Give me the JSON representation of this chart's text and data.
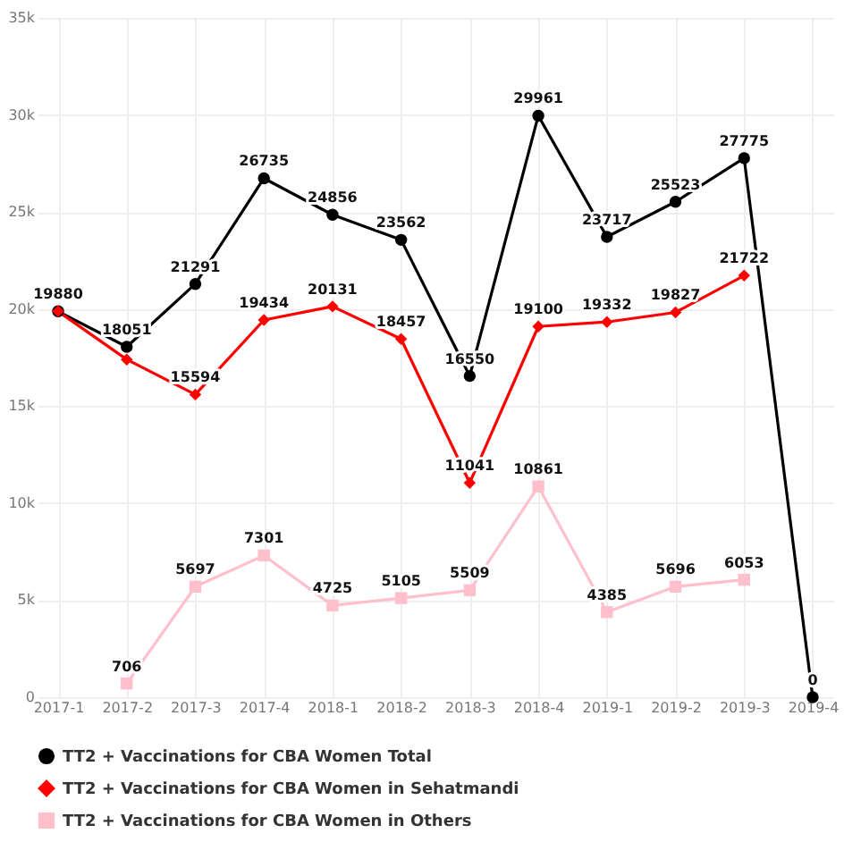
{
  "chart_data": {
    "type": "line",
    "categories": [
      "2017-1",
      "2017-2",
      "2017-3",
      "2017-4",
      "2018-1",
      "2018-2",
      "2018-3",
      "2018-4",
      "2019-1",
      "2019-2",
      "2019-3",
      "2019-4"
    ],
    "series": [
      {
        "name": "TT2 + Vaccinations for CBA Women Total",
        "color": "#000000",
        "marker": "circle",
        "values": [
          19880,
          18051,
          21291,
          26735,
          24856,
          23562,
          16550,
          29961,
          23717,
          25523,
          27775,
          0
        ],
        "value_labels": [
          "19880",
          "18051",
          "21291",
          "26735",
          "24856",
          "23562",
          "16550",
          "29961",
          "23717",
          "25523",
          "27775",
          "0"
        ]
      },
      {
        "name": "TT2 + Vaccinations for CBA Women in Sehatmandi",
        "color": "#ff0000",
        "marker": "diamond",
        "values": [
          19880,
          17400,
          15594,
          19434,
          20131,
          18457,
          11041,
          19100,
          19332,
          19827,
          21722,
          null
        ],
        "value_labels": [
          null,
          null,
          "15594",
          "19434",
          "20131",
          "18457",
          "11041",
          "19100",
          "19332",
          "19827",
          "21722",
          null
        ]
      },
      {
        "name": "TT2 + Vaccinations for CBA Women in Others",
        "color": "#ffc0cb",
        "marker": "square",
        "values": [
          null,
          706,
          5697,
          7301,
          4725,
          5105,
          5509,
          10861,
          4385,
          5696,
          6053,
          null
        ],
        "value_labels": [
          null,
          "706",
          "5697",
          "7301",
          "4725",
          "5105",
          "5509",
          "10861",
          "4385",
          "5696",
          "6053",
          null
        ]
      }
    ],
    "ylim": [
      0,
      35000
    ],
    "yticks": [
      0,
      {
        "value": 5000,
        "label": "5k"
      },
      {
        "value": 10000,
        "label": "10k"
      },
      {
        "value": 15000,
        "label": "15k"
      },
      {
        "value": 20000,
        "label": "20k"
      },
      {
        "value": 25000,
        "label": "25k"
      },
      {
        "value": 30000,
        "label": "30k"
      },
      {
        "value": 35000,
        "label": "35k"
      }
    ],
    "grid": true,
    "legend": "bottom",
    "line_style": "solid"
  }
}
